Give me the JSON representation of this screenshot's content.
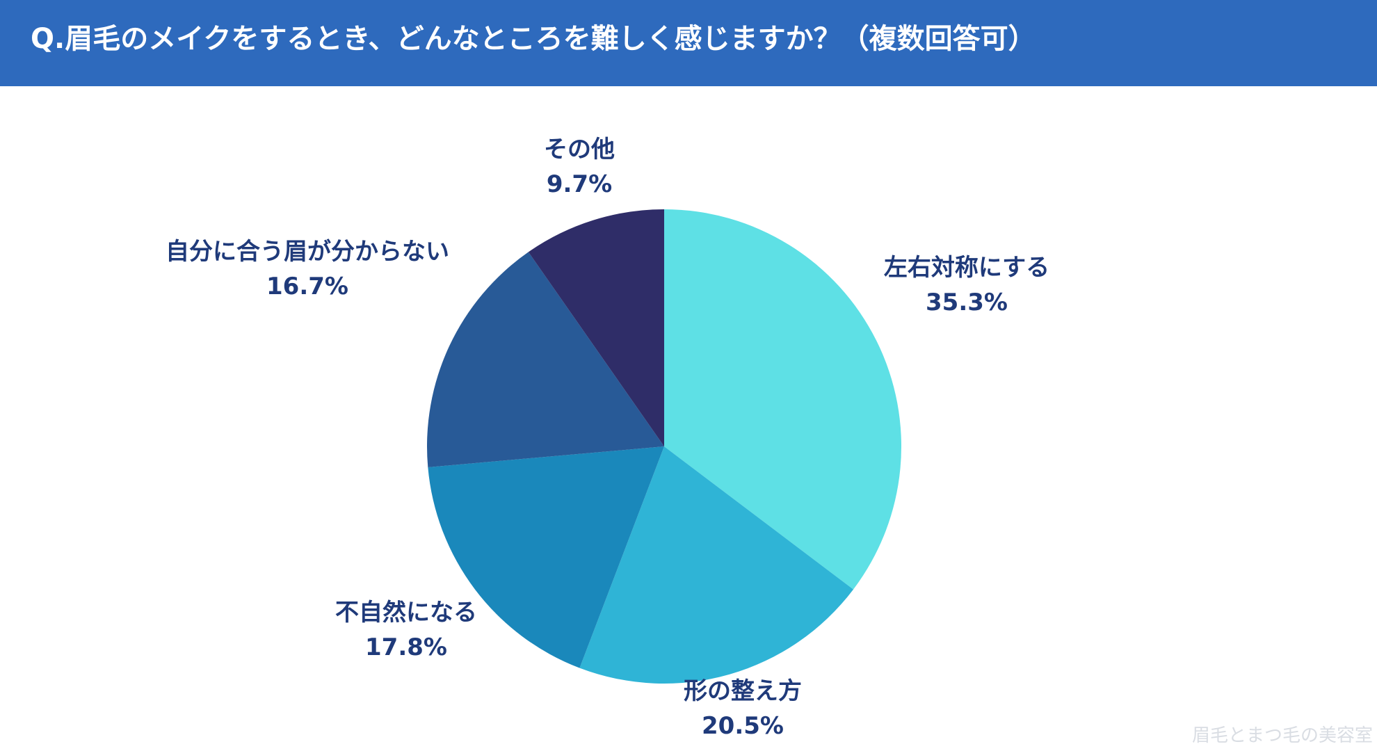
{
  "header": {
    "title": "Q.眉毛のメイクをするとき、どんなところを難しく感じますか？（複数回答可）"
  },
  "colors": {
    "header_bg": "#2e6abd",
    "label_text": "#1f3a7a"
  },
  "chart_data": {
    "type": "pie",
    "title": "Q.眉毛のメイクをするとき、どんなところを難しく感じますか？（複数回答可）",
    "unit": "%",
    "slices": [
      {
        "label": "左右対称にする",
        "value": 35.3,
        "display": "35.3%",
        "color": "#5ee0e5"
      },
      {
        "label": "形の整え方",
        "value": 20.5,
        "display": "20.5%",
        "color": "#2fb4d6"
      },
      {
        "label": "不自然になる",
        "value": 17.8,
        "display": "17.8%",
        "color": "#1a88bb"
      },
      {
        "label": "自分に合う眉が分からない",
        "value": 16.7,
        "display": "16.7%",
        "color": "#285a97"
      },
      {
        "label": "その他",
        "value": 9.7,
        "display": "9.7%",
        "color": "#2f2d68"
      }
    ]
  },
  "watermark": "眉毛とまつ毛の美容室"
}
